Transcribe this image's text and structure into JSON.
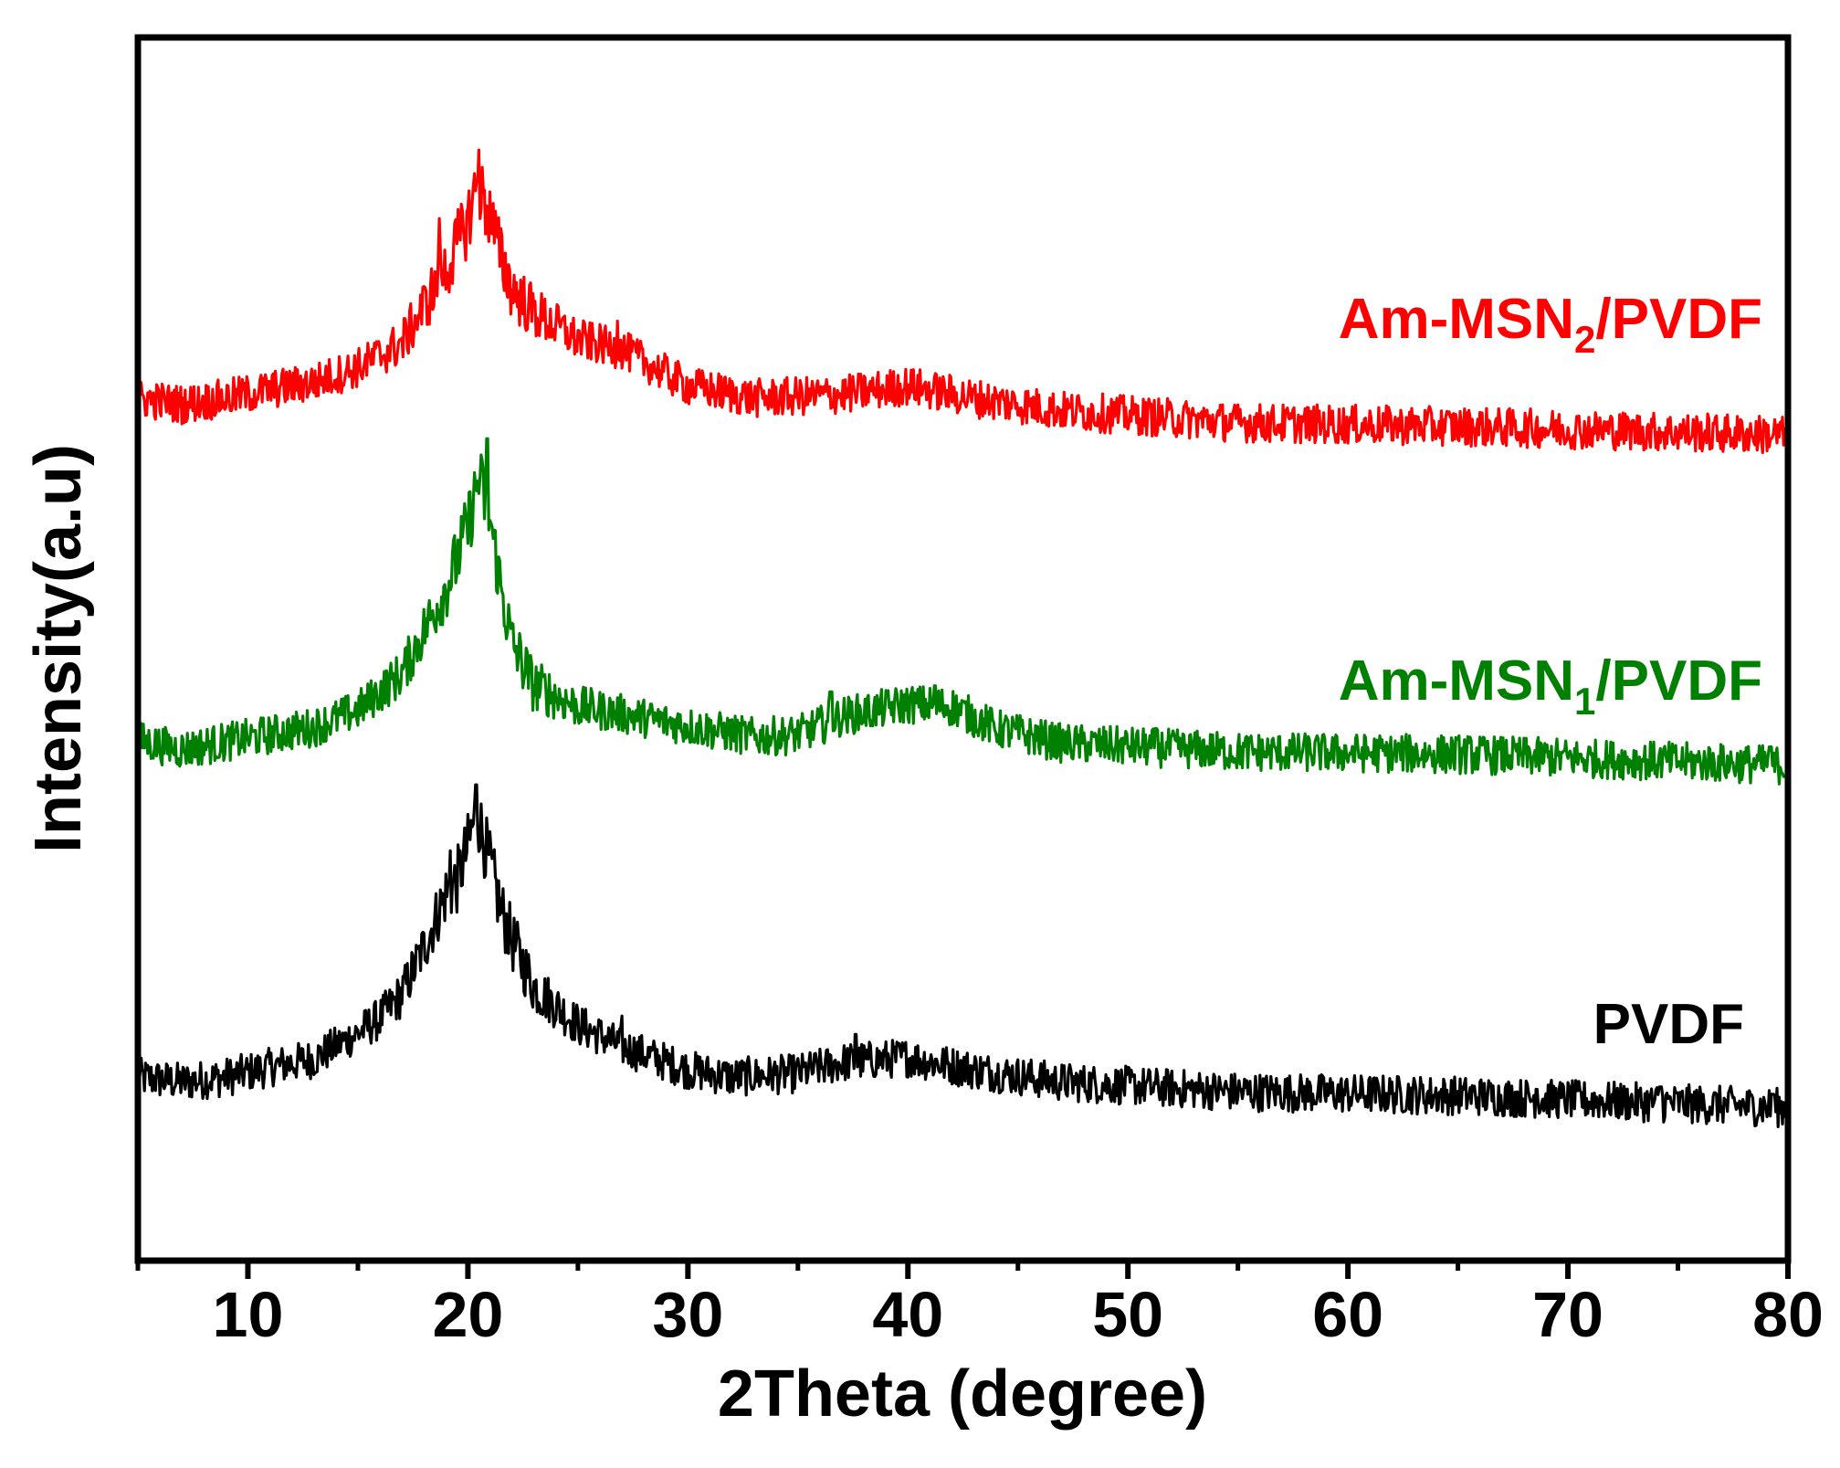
{
  "chart_data": {
    "type": "line",
    "title": "",
    "xlabel": "2Theta (degree)",
    "ylabel": "Intensity(a.u)",
    "xlim": [
      5,
      80
    ],
    "ylim": [
      0,
      100
    ],
    "x_ticks": [
      "10",
      "20",
      "30",
      "40",
      "50",
      "60",
      "70",
      "80"
    ],
    "x_tick_values": [
      10,
      20,
      30,
      40,
      50,
      60,
      70,
      80
    ],
    "x_minor_ticks": [
      5,
      15,
      25,
      35,
      45,
      55,
      65,
      75
    ],
    "grid": false,
    "series": [
      {
        "name": "PVDF",
        "label_main": "PVDF",
        "label_sub": "",
        "label_tail": "",
        "color": "#000000",
        "noise": 1.6,
        "points": [
          [
            5,
            15.0
          ],
          [
            7,
            14.6
          ],
          [
            9,
            15.0
          ],
          [
            11,
            15.8
          ],
          [
            13,
            16.5
          ],
          [
            15,
            18.6
          ],
          [
            16,
            19.8
          ],
          [
            17,
            21.8
          ],
          [
            18,
            25.6
          ],
          [
            19,
            30.0
          ],
          [
            19.5,
            31.0
          ],
          [
            20,
            33.8
          ],
          [
            20.4,
            36.8
          ],
          [
            20.8,
            33.8
          ],
          [
            21.5,
            28.7
          ],
          [
            22,
            26.2
          ],
          [
            23,
            22.4
          ],
          [
            25,
            19.3
          ],
          [
            27,
            17.5
          ],
          [
            30,
            15.6
          ],
          [
            32,
            15.0
          ],
          [
            35,
            15.3
          ],
          [
            37,
            16.2
          ],
          [
            40,
            16.6
          ],
          [
            43,
            15.6
          ],
          [
            47,
            14.6
          ],
          [
            55,
            13.8
          ],
          [
            65,
            13.5
          ],
          [
            80,
            12.5
          ]
        ],
        "spikes": [
          [
            20.4,
            38.9
          ],
          [
            19.2,
            33.5
          ],
          [
            27,
            20.0
          ],
          [
            37.6,
            18.5
          ],
          [
            68.6,
            14.0
          ],
          [
            74.2,
            14.2
          ],
          [
            79.3,
            13.6
          ]
        ]
      },
      {
        "name": "Am-MSN1/PVDF",
        "label_main": "Am-MSN",
        "label_sub": "1",
        "label_tail": "/PVDF",
        "color": "#008000",
        "noise": 1.6,
        "points": [
          [
            5,
            42.5
          ],
          [
            7,
            41.8
          ],
          [
            9,
            42.4
          ],
          [
            11,
            43.0
          ],
          [
            13,
            43.6
          ],
          [
            15,
            45.0
          ],
          [
            17,
            48.0
          ],
          [
            18,
            51.5
          ],
          [
            19,
            55.0
          ],
          [
            19.5,
            57.3
          ],
          [
            20,
            60.0
          ],
          [
            20.5,
            64.0
          ],
          [
            21,
            60.7
          ],
          [
            21.5,
            55.0
          ],
          [
            22,
            50.5
          ],
          [
            23,
            47.0
          ],
          [
            25,
            45.3
          ],
          [
            27,
            44.7
          ],
          [
            30,
            43.7
          ],
          [
            33,
            42.8
          ],
          [
            35,
            43.0
          ],
          [
            37,
            44.5
          ],
          [
            40,
            45.5
          ],
          [
            42,
            45.3
          ],
          [
            44,
            43.5
          ],
          [
            47,
            42.3
          ],
          [
            55,
            41.6
          ],
          [
            65,
            41.4
          ],
          [
            80,
            40.5
          ]
        ],
        "spikes": [
          [
            20.9,
            67.2
          ],
          [
            36.5,
            46.5
          ],
          [
            41.2,
            47.0
          ],
          [
            51.3,
            43.5
          ],
          [
            79.2,
            42.0
          ]
        ]
      },
      {
        "name": "Am-MSN2/PVDF",
        "label_main": "Am-MSN",
        "label_sub": "2",
        "label_tail": "/PVDF",
        "color": "#ff0000",
        "noise": 1.6,
        "points": [
          [
            5,
            70.5
          ],
          [
            7,
            70.0
          ],
          [
            9,
            70.5
          ],
          [
            11,
            71.2
          ],
          [
            13,
            71.8
          ],
          [
            15,
            73.0
          ],
          [
            17,
            75.0
          ],
          [
            18,
            78.0
          ],
          [
            19,
            81.0
          ],
          [
            19.5,
            83.0
          ],
          [
            20,
            85.0
          ],
          [
            20.4,
            88.0
          ],
          [
            21,
            85.5
          ],
          [
            21.5,
            82.0
          ],
          [
            22,
            79.5
          ],
          [
            23,
            77.5
          ],
          [
            25,
            75.3
          ],
          [
            27,
            74.5
          ],
          [
            30,
            71.5
          ],
          [
            33,
            70.5
          ],
          [
            37,
            70.8
          ],
          [
            40,
            71.5
          ],
          [
            43,
            70.5
          ],
          [
            47,
            69.5
          ],
          [
            55,
            68.5
          ],
          [
            65,
            68.2
          ],
          [
            80,
            67.5
          ]
        ],
        "spikes": [
          [
            20.5,
            90.8
          ],
          [
            18.7,
            85.2
          ],
          [
            26.8,
            76.8
          ]
        ]
      }
    ]
  }
}
